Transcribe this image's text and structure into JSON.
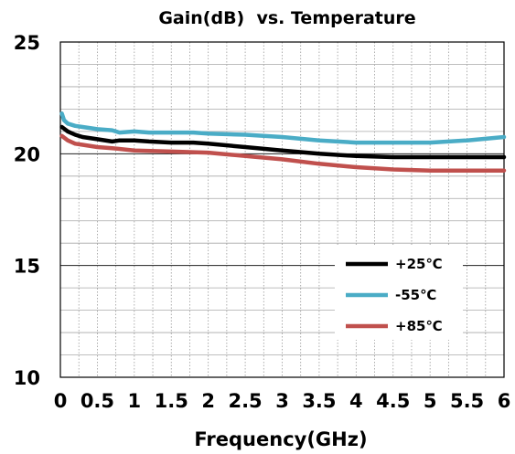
{
  "chart_data": {
    "type": "line",
    "title": "Gain(dB)  vs. Temperature",
    "xlabel": "Frequency(GHz)",
    "ylabel": "",
    "xlim": [
      0,
      6
    ],
    "ylim": [
      10,
      25
    ],
    "xticks": [
      "0",
      "0.5",
      "1",
      "1.5",
      "2",
      "2.5",
      "3",
      "3.5",
      "4",
      "4.5",
      "5",
      "5.5",
      "6"
    ],
    "yticks": [
      "10",
      "15",
      "20",
      "25"
    ],
    "grid": true,
    "legend_position": "bottom-right",
    "series": [
      {
        "name": "+25℃",
        "color": "#000000",
        "x": [
          0.02,
          0.1,
          0.2,
          0.3,
          0.5,
          0.7,
          0.8,
          1.0,
          1.2,
          1.5,
          1.8,
          2.0,
          2.5,
          3.0,
          3.5,
          4.0,
          4.5,
          5.0,
          5.5,
          6.0
        ],
        "y": [
          21.2,
          21.0,
          20.85,
          20.75,
          20.65,
          20.55,
          20.6,
          20.6,
          20.55,
          20.5,
          20.5,
          20.45,
          20.3,
          20.15,
          20.0,
          19.9,
          19.85,
          19.85,
          19.85,
          19.85
        ]
      },
      {
        "name": "-55℃",
        "color": "#4aacc6",
        "x": [
          0.02,
          0.05,
          0.1,
          0.2,
          0.3,
          0.5,
          0.7,
          0.8,
          1.0,
          1.2,
          1.5,
          1.8,
          2.0,
          2.5,
          3.0,
          3.5,
          4.0,
          4.2,
          4.5,
          5.0,
          5.5,
          6.0
        ],
        "y": [
          21.8,
          21.5,
          21.35,
          21.25,
          21.2,
          21.1,
          21.05,
          20.95,
          21.0,
          20.95,
          20.95,
          20.95,
          20.9,
          20.85,
          20.75,
          20.6,
          20.5,
          20.5,
          20.5,
          20.5,
          20.6,
          20.75
        ]
      },
      {
        "name": "+85℃",
        "color": "#c0504d",
        "x": [
          0.02,
          0.1,
          0.2,
          0.3,
          0.5,
          0.7,
          1.0,
          1.5,
          2.0,
          2.5,
          3.0,
          3.5,
          4.0,
          4.5,
          5.0,
          5.5,
          6.0
        ],
        "y": [
          20.8,
          20.6,
          20.45,
          20.4,
          20.3,
          20.25,
          20.15,
          20.1,
          20.05,
          19.9,
          19.75,
          19.55,
          19.4,
          19.3,
          19.25,
          19.25,
          19.25
        ]
      }
    ]
  }
}
